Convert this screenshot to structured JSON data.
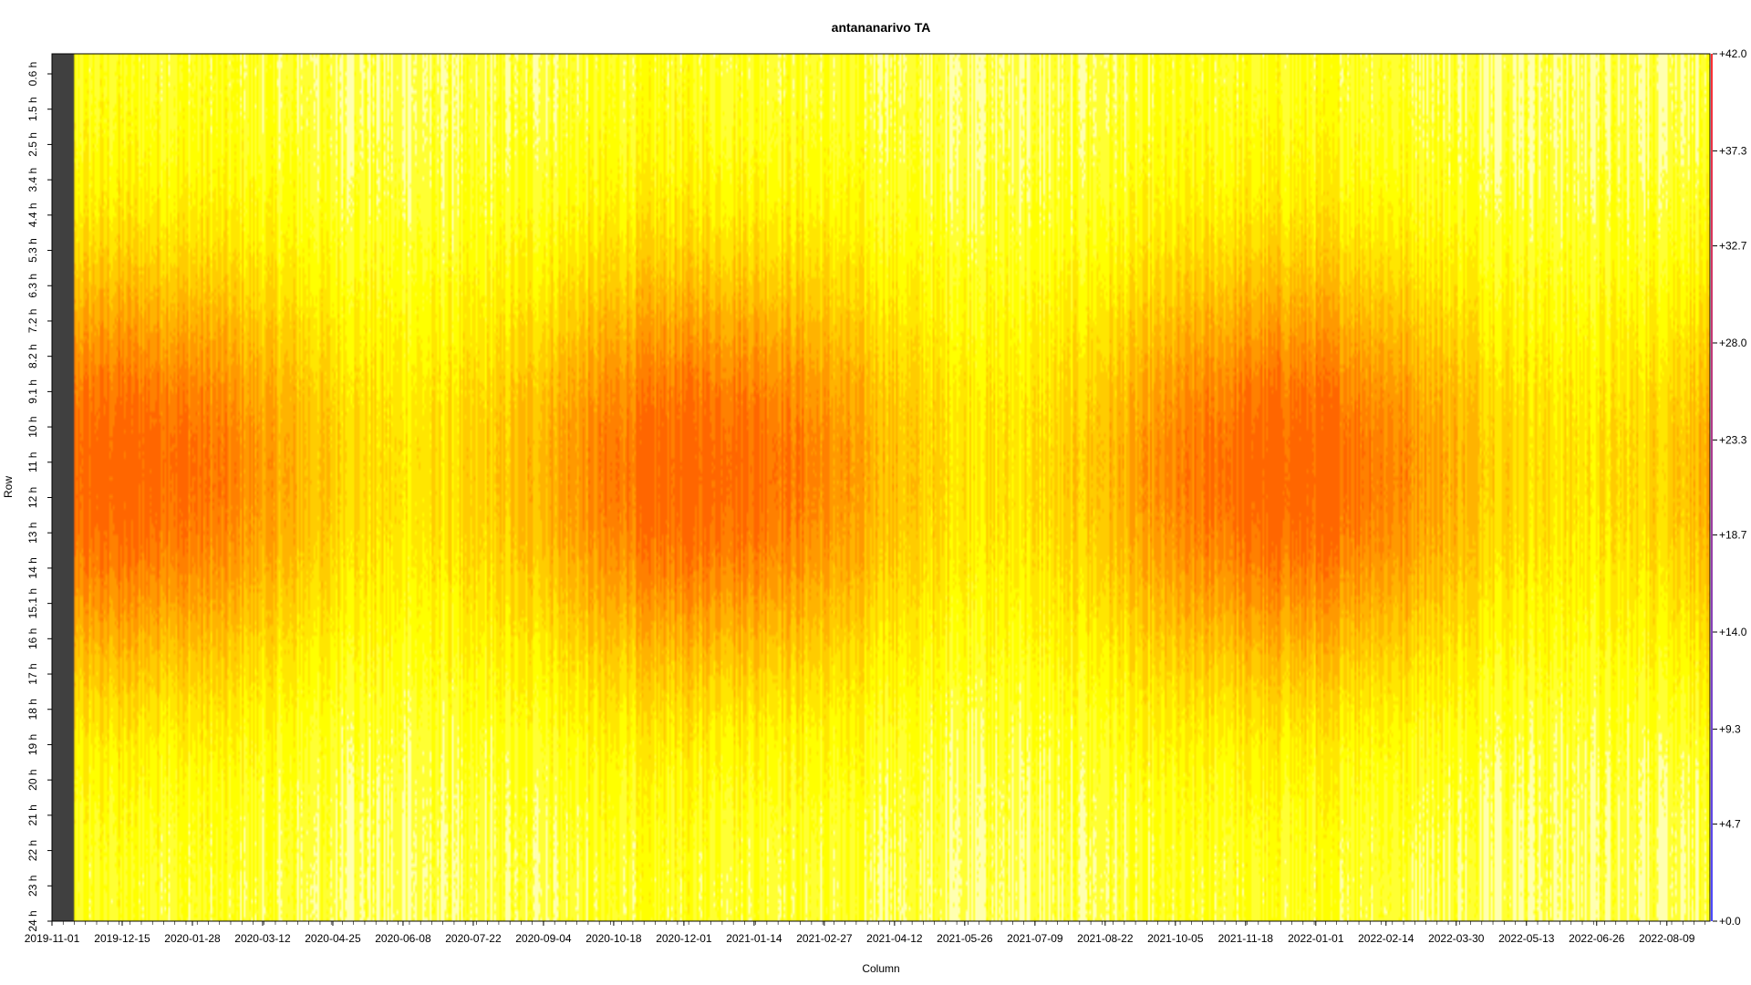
{
  "chart_data": {
    "type": "heatmap",
    "title": "antananarivo TA",
    "xlabel": "Column",
    "ylabel": "Row",
    "x_tick_labels": [
      "2019-11-01",
      "2019-12-15",
      "2020-01-28",
      "2020-03-12",
      "2020-04-25",
      "2020-06-08",
      "2020-07-22",
      "2020-09-04",
      "2020-10-18",
      "2020-12-01",
      "2021-01-14",
      "2021-02-27",
      "2021-04-12",
      "2021-05-26",
      "2021-07-09",
      "2021-08-22",
      "2021-10-05",
      "2021-11-18",
      "2022-01-01",
      "2022-02-14",
      "2022-03-30",
      "2022-05-13",
      "2022-06-26",
      "2022-08-09"
    ],
    "x_range": [
      "2019-11-01",
      "2022-09-05"
    ],
    "y_tick_labels": [
      "0.6 h",
      "1.5 h",
      "2.5 h",
      "3.4 h",
      "4.4 h",
      "5.3 h",
      "6.3 h",
      "7.2 h",
      "8.2 h",
      "9.1 h",
      "10 h",
      "11 h",
      "12 h",
      "13 h",
      "14 h",
      "15.1 h",
      "16 h",
      "17 h",
      "18 h",
      "19 h",
      "20 h",
      "21 h",
      "22 h",
      "23 h",
      "24 h"
    ],
    "y_range_hours": [
      0,
      24
    ],
    "colorbar_labels": [
      "+0.0",
      "+4.7",
      "+9.3",
      "+14.0",
      "+18.7",
      "+23.3",
      "+28.0",
      "+32.7",
      "+37.3",
      "+42.0"
    ],
    "value_range": [
      0,
      42
    ],
    "palette": [
      "#ffffb0",
      "#ffff33",
      "#ffff00",
      "#ffe600",
      "#ffcc00",
      "#ffb300",
      "#ff9900",
      "#ff8000",
      "#ff6600"
    ],
    "missing_color": "#404040",
    "colorbar_gradient": [
      "#4a4aff",
      "#ff3030"
    ],
    "pattern": {
      "diurnal_peak_hours": 11.5,
      "seasonal_peaks": [
        "2019-12-15",
        "2021-01-01",
        "2021-12-01"
      ],
      "seasonal_troughs": [
        "2020-07-15",
        "2021-07-15",
        "2022-07-15"
      ],
      "missing_until": "2019-11-14"
    }
  }
}
